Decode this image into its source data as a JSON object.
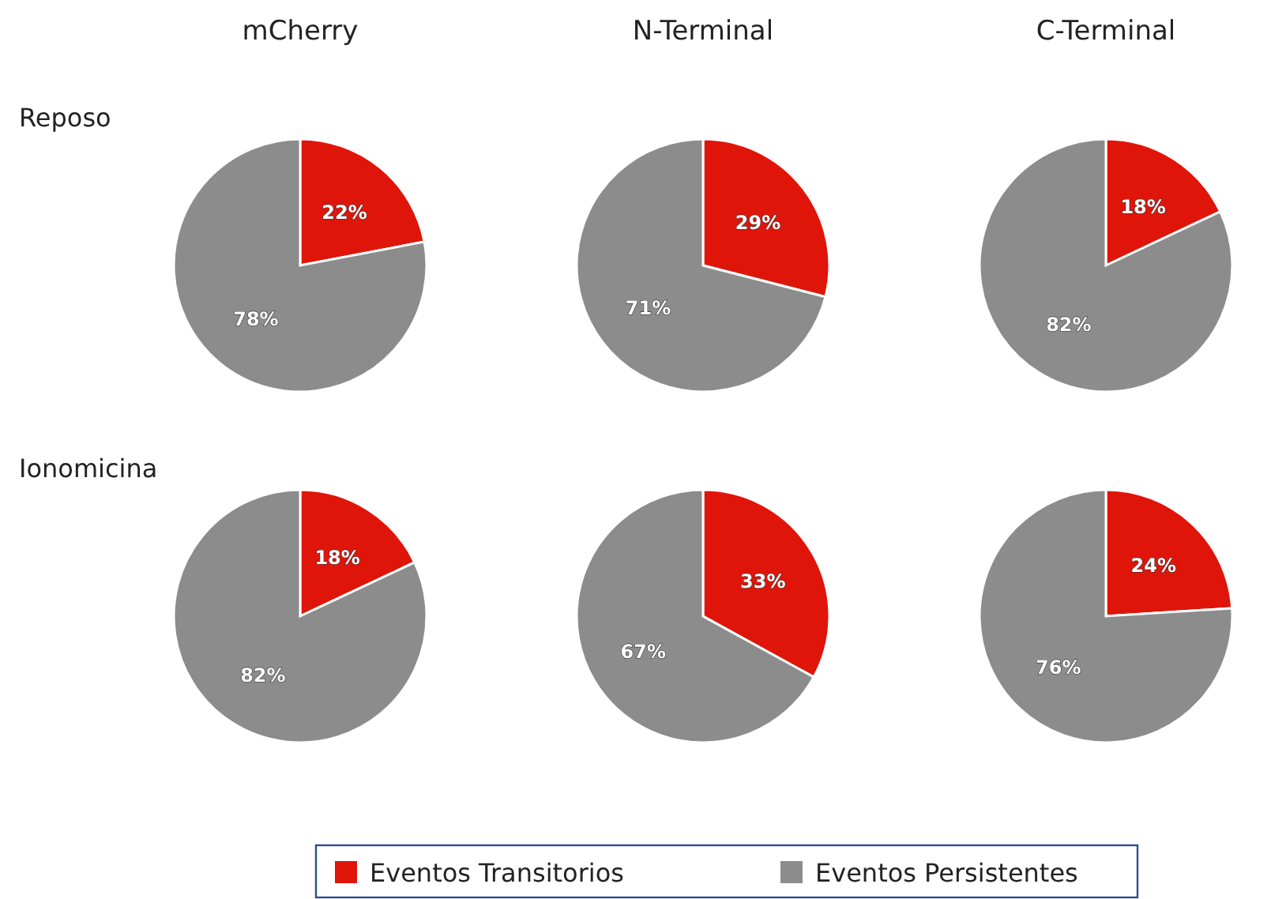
{
  "chart_data": [
    {
      "type": "pie",
      "title": "mCherry",
      "annotations": [
        "Reposo"
      ],
      "categories": [
        null,
        null
      ],
      "values": [
        22,
        78
      ],
      "value_labels": [
        "22%",
        "78%"
      ],
      "colors": [
        "#e0150a",
        "#8c8c8c"
      ]
    },
    {
      "type": "pie",
      "title": "N-Terminal",
      "categories": [
        null,
        null
      ],
      "values": [
        29,
        71
      ],
      "value_labels": [
        "29%",
        "71%"
      ],
      "colors": [
        "#e0150a",
        "#8c8c8c"
      ]
    },
    {
      "type": "pie",
      "title": "C-Terminal",
      "categories": [
        null,
        null
      ],
      "values": [
        18,
        82
      ],
      "value_labels": [
        "18%",
        "82%"
      ],
      "colors": [
        "#e0150a",
        "#8c8c8c"
      ]
    },
    {
      "type": "pie",
      "annotations": [
        "Ionomicina"
      ],
      "categories": [
        null,
        null
      ],
      "values": [
        18,
        82
      ],
      "value_labels": [
        "18%",
        "82%"
      ],
      "colors": [
        "#e0150a",
        "#8c8c8c"
      ]
    },
    {
      "type": "pie",
      "categories": [
        null,
        null
      ],
      "values": [
        33,
        67
      ],
      "value_labels": [
        "33%",
        "67%"
      ],
      "colors": [
        "#e0150a",
        "#8c8c8c"
      ]
    },
    {
      "type": "pie",
      "categories": [
        "Eventos Transitorios",
        "Eventos Persistentes"
      ],
      "values": [
        24,
        76
      ],
      "value_labels": [
        "24%",
        "76%"
      ],
      "colors": [
        "#e0150a",
        "#8c8c8c"
      ],
      "legend": "bottom"
    }
  ]
}
